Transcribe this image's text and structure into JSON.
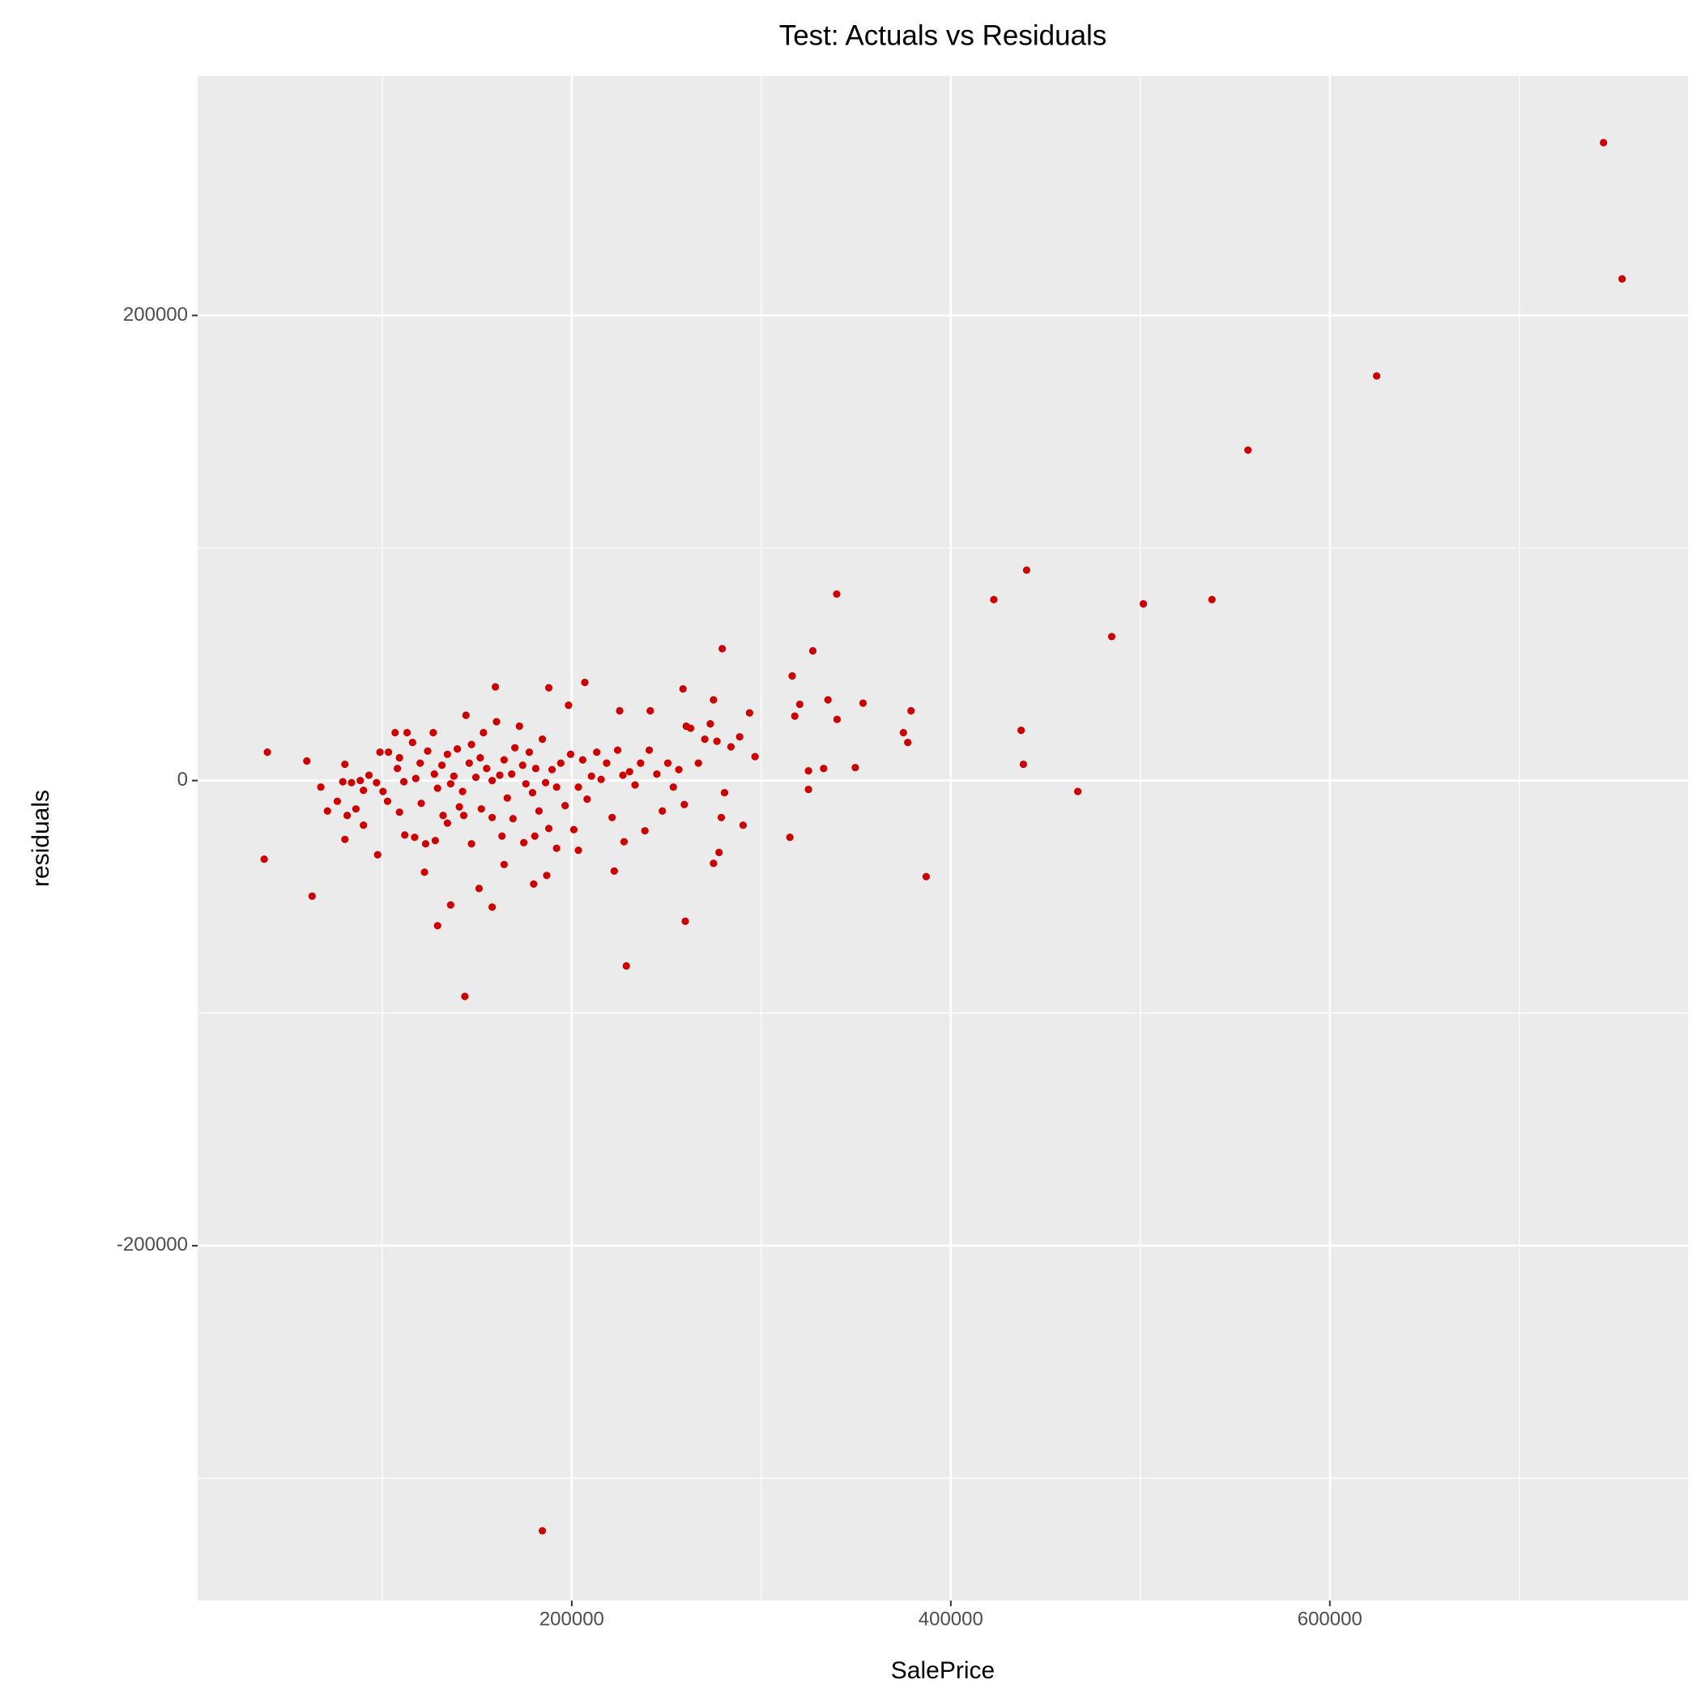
{
  "chart_data": {
    "type": "scatter",
    "title": "Test: Actuals vs Residuals",
    "x_label": "SalePrice",
    "y_label": "residuals",
    "xlim": [
      2600,
      789000
    ],
    "ylim": [
      -352600,
      302900
    ],
    "xticks": [
      200000,
      400000,
      600000
    ],
    "yticks": [
      -200000,
      0,
      200000
    ],
    "x_minor_grid": [
      100000,
      300000,
      500000,
      700000
    ],
    "y_minor_grid": [
      -300000,
      -100000,
      100000
    ],
    "grid": true,
    "series": [
      {
        "color": "#cc0000",
        "x": [
          744400,
          754200,
          624700,
          556800,
          440000,
          339800,
          422700,
          537800,
          501600,
          484900,
          279400,
          327200,
          316300,
          206900,
          159700,
          187900,
          258700,
          274800,
          335200,
          353700,
          320300,
          198300,
          225300,
          241400,
          293800,
          379000,
          317700,
          340000,
          260400,
          437100,
          375000,
          377300,
          296700,
          438300,
          349600,
          332900,
          324900,
          324900,
          467000,
          315100,
          387000,
          290400,
          278900,
          277700,
          274800,
          259900,
          228800,
          222400,
          227600,
          184500,
          143600,
          129200,
          63000,
          37700,
          39400,
          60200,
          158000,
          151100,
          136100,
          164300,
          186800,
          179900,
          122300,
          97600,
          80300,
          80300,
          79200,
          76300,
          81500,
          86100,
          83800,
          88400,
          90100,
          93000,
          97000,
          100400,
          103300,
          106800,
          109100,
          111400,
          113100,
          116000,
          117700,
          120000,
          120600,
          124000,
          126900,
          127500,
          129200,
          131500,
          132100,
          134400,
          136100,
          137800,
          139600,
          140700,
          142400,
          144200,
          145900,
          147100,
          149400,
          151700,
          153400,
          155100,
          158000,
          160300,
          162000,
          164300,
          166000,
          168300,
          170000,
          172400,
          174100,
          175800,
          177600,
          179300,
          181000,
          182700,
          184500,
          186200,
          187900,
          189600,
          192000,
          194200,
          196500,
          199400,
          201100,
          203500,
          205800,
          208100,
          210400,
          213200,
          215500,
          218400,
          221300,
          224200,
          227000,
          230500,
          233400,
          236300,
          238600,
          240900,
          244900,
          247800,
          250700,
          253600,
          256500,
          259400,
          262700,
          266800,
          270200,
          273100,
          276600,
          280600,
          284000,
          288600,
          109100,
          111900,
          117100,
          122900,
          128000,
          134400,
          143000,
          147100,
          152300,
          158000,
          163200,
          169000,
          174700,
          180500,
          192000,
          203500,
          98800,
          108000,
          102800,
          90100,
          71100,
          67600
        ],
        "values": [
          274300,
          215700,
          174000,
          142100,
          90500,
          80200,
          77800,
          77800,
          76000,
          61900,
          56700,
          55800,
          45000,
          42200,
          40300,
          39900,
          39400,
          34700,
          34700,
          33300,
          32800,
          32400,
          30000,
          30000,
          29100,
          30000,
          27700,
          26300,
          23400,
          21600,
          20600,
          16400,
          10300,
          7000,
          5600,
          5200,
          4200,
          -3800,
          -4700,
          -24400,
          -41300,
          -19200,
          -15900,
          -30900,
          -35600,
          -60500,
          -79700,
          -38900,
          -26300,
          -322600,
          -92800,
          -62400,
          -49700,
          -33800,
          12200,
          8400,
          -54400,
          -46400,
          -53500,
          -36100,
          -40800,
          -44500,
          -39400,
          -31900,
          -25300,
          7000,
          -500,
          -8900,
          -15000,
          -12200,
          -900,
          0,
          -4200,
          2300,
          -900,
          -4700,
          12200,
          20600,
          9800,
          -500,
          20600,
          16400,
          900,
          7500,
          -9800,
          12700,
          20600,
          2800,
          -3300,
          6600,
          -15000,
          11300,
          -1400,
          1900,
          13600,
          -11300,
          -4700,
          28100,
          7500,
          15500,
          1400,
          9800,
          20600,
          5200,
          0,
          25300,
          2300,
          8900,
          -7500,
          2800,
          14100,
          23400,
          6600,
          -1400,
          12200,
          -5200,
          5200,
          -13100,
          17800,
          -900,
          -20600,
          4700,
          -2800,
          7500,
          -10800,
          11300,
          -21100,
          -2800,
          8900,
          -8000,
          1900,
          12200,
          500,
          7500,
          -15900,
          13100,
          2300,
          3800,
          -1900,
          7500,
          -21600,
          13100,
          2800,
          -13100,
          7500,
          -2800,
          4700,
          -10300,
          22500,
          7500,
          17800,
          24400,
          16900,
          -5200,
          14500,
          18800,
          -13600,
          -23400,
          -24400,
          -27200,
          -25800,
          -18300,
          -15000,
          -27200,
          -12200,
          -15900,
          -23900,
          -16400,
          -26700,
          -23900,
          -29100,
          -30000,
          12200,
          5200,
          -8900,
          -19200,
          -13100,
          -2800
        ]
      }
    ]
  }
}
